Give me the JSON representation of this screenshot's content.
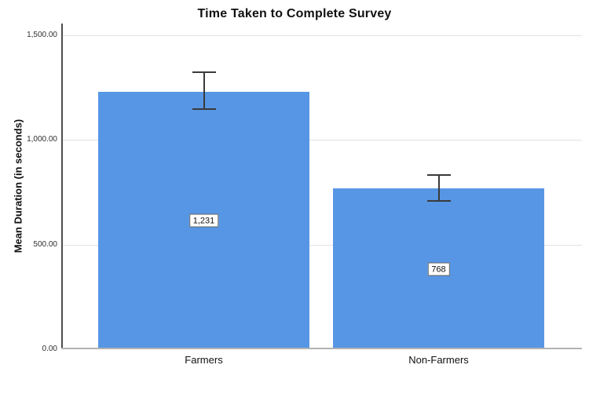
{
  "chart_data": {
    "type": "bar",
    "title": "Time Taken to Complete Survey",
    "xlabel": "",
    "ylabel": "Mean Duration (in seconds)",
    "categories": [
      "Farmers",
      "Non-Farmers"
    ],
    "values": [
      1231,
      768
    ],
    "value_labels": [
      "1,231",
      "768"
    ],
    "error_bars": [
      {
        "lower": 1146,
        "upper": 1325
      },
      {
        "lower": 709,
        "upper": 833
      }
    ],
    "ylim": [
      0,
      1500
    ],
    "yticks": [
      {
        "value": 0,
        "label": "0.00"
      },
      {
        "value": 500,
        "label": "500.00"
      },
      {
        "value": 1000,
        "label": "1,000.00"
      },
      {
        "value": 1500,
        "label": "1,500.00"
      }
    ],
    "grid": true,
    "legend": "none",
    "colors": {
      "bar_fill": "#5796E4",
      "error_bar": "#3a3a3a",
      "gridline": "#e2e2e2",
      "y_axis_line": "#4d4d4d",
      "x_axis_line": "#b3b3b3"
    }
  }
}
